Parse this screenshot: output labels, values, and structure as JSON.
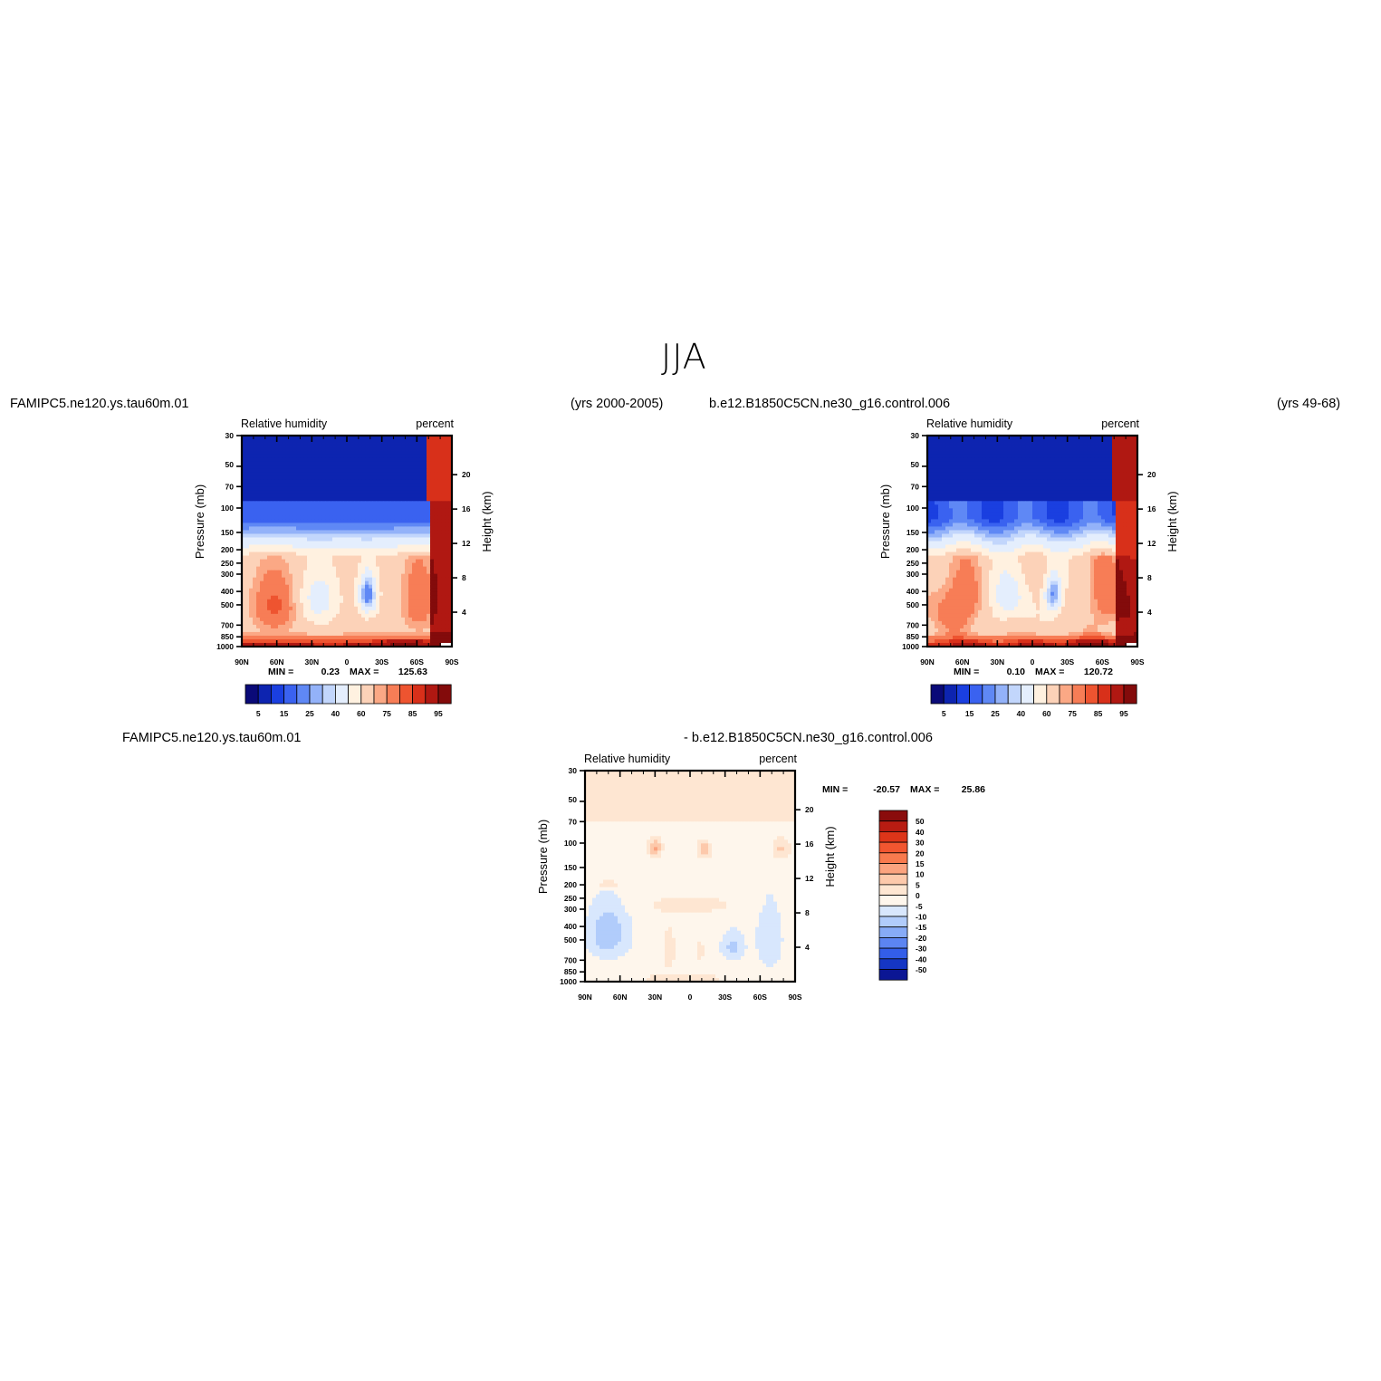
{
  "title": "JJA",
  "panels": [
    {
      "id": "p1",
      "case_name": "FAMIPC5.ne120.ys.tau60m.01",
      "years": "(yrs 2000-2005)",
      "variable": "Relative humidity",
      "units": "percent",
      "min_label": "MIN =",
      "min_value": "0.23",
      "max_label": "MAX =",
      "max_value": "125.63"
    },
    {
      "id": "p2",
      "case_name": "b.e12.B1850C5CN.ne30_g16.control.006",
      "years": "(yrs 49-68)",
      "variable": "Relative humidity",
      "units": "percent",
      "min_label": "MIN =",
      "min_value": "0.10",
      "max_label": "MAX =",
      "max_value": "120.72"
    },
    {
      "id": "p3",
      "case_name": "FAMIPC5.ne120.ys.tau60m.01",
      "case_name_b": "- b.e12.B1850C5CN.ne30_g16.control.006",
      "variable": "Relative humidity",
      "units": "percent",
      "min_label": "MIN =",
      "min_value": "-20.57",
      "max_label": "MAX =",
      "max_value": "25.86"
    }
  ],
  "axes": {
    "ylabel_left": "Pressure (mb)",
    "ylabel_right": "Height (km)",
    "pressure_ticks": [
      "30",
      "50",
      "70",
      "100",
      "150",
      "200",
      "250",
      "300",
      "400",
      "500",
      "700",
      "850",
      "1000"
    ],
    "height_ticks": [
      "20",
      "16",
      "12",
      "8",
      "4"
    ],
    "lat_ticks": [
      "90N",
      "60N",
      "30N",
      "0",
      "30S",
      "60S",
      "90S"
    ]
  },
  "colorbar_abs": {
    "labels": [
      "5",
      "15",
      "25",
      "40",
      "60",
      "75",
      "85",
      "95"
    ],
    "colors": [
      "#0a0a78",
      "#0d24b0",
      "#1a3fe0",
      "#3a62f0",
      "#5f88f5",
      "#93b2f9",
      "#c2d6fc",
      "#e4eefd",
      "#fff1e0",
      "#fcd2b8",
      "#fba885",
      "#f77d56",
      "#ee5430",
      "#d8301a",
      "#b01812",
      "#830b0b"
    ]
  },
  "colorbar_diff": {
    "labels": [
      "50",
      "40",
      "30",
      "20",
      "15",
      "10",
      "5",
      "0",
      "-5",
      "-10",
      "-15",
      "-20",
      "-30",
      "-40",
      "-50"
    ],
    "colors": [
      "#8a0c0c",
      "#b81c12",
      "#dd3519",
      "#f25630",
      "#f87a4e",
      "#fba37f",
      "#fdc9ab",
      "#fee6d2",
      "#fef6ec",
      "#d8e7fd",
      "#b1ccfb",
      "#87abf7",
      "#5c85f2",
      "#335ee9",
      "#1536c4",
      "#0b1694"
    ]
  },
  "chart_data": [
    {
      "type": "heatmap",
      "title": "Relative humidity",
      "subtitle": "FAMIPC5.ne120.ys.tau60m.01 (yrs 2000-2005)",
      "units": "percent",
      "xlabel": "",
      "ylabel": "Pressure (mb)",
      "y2label": "Height (km)",
      "x_categories": [
        "90N",
        "60N",
        "30N",
        "0",
        "30S",
        "60S",
        "90S"
      ],
      "y_pressure_levels": [
        30,
        50,
        70,
        100,
        150,
        200,
        250,
        300,
        400,
        500,
        700,
        850,
        1000
      ],
      "min": 0.23,
      "max": 125.63,
      "contour_levels": [
        5,
        15,
        25,
        40,
        60,
        75,
        85,
        95
      ]
    },
    {
      "type": "heatmap",
      "title": "Relative humidity",
      "subtitle": "b.e12.B1850C5CN.ne30_g16.control.006 (yrs 49-68)",
      "units": "percent",
      "ylabel": "Pressure (mb)",
      "y2label": "Height (km)",
      "x_categories": [
        "90N",
        "60N",
        "30N",
        "0",
        "30S",
        "60S",
        "90S"
      ],
      "y_pressure_levels": [
        30,
        50,
        70,
        100,
        150,
        200,
        250,
        300,
        400,
        500,
        700,
        850,
        1000
      ],
      "min": 0.1,
      "max": 120.72,
      "contour_levels": [
        5,
        15,
        25,
        40,
        60,
        75,
        85,
        95
      ]
    },
    {
      "type": "heatmap",
      "title": "Relative humidity",
      "subtitle": "FAMIPC5.ne120.ys.tau60m.01 - b.e12.B1850C5CN.ne30_g16.control.006",
      "units": "percent",
      "ylabel": "Pressure (mb)",
      "y2label": "Height (km)",
      "x_categories": [
        "90N",
        "60N",
        "30N",
        "0",
        "30S",
        "60S",
        "90S"
      ],
      "y_pressure_levels": [
        30,
        50,
        70,
        100,
        150,
        200,
        250,
        300,
        400,
        500,
        700,
        850,
        1000
      ],
      "min": -20.57,
      "max": 25.86,
      "contour_levels": [
        -50,
        -40,
        -30,
        -20,
        -15,
        -10,
        -5,
        0,
        5,
        10,
        15,
        20,
        30,
        40,
        50
      ]
    }
  ]
}
